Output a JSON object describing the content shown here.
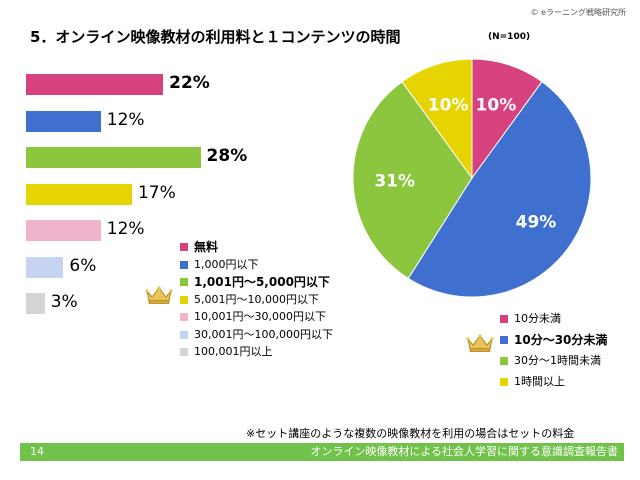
{
  "header": {
    "brand": "© eラーニング戦略研究所",
    "title": "5．オンライン映像教材の利用料と１コンテンツの時間",
    "n_label": "(N=100)"
  },
  "chart_data": [
    {
      "type": "bar",
      "orientation": "horizontal",
      "categories": [
        "無料",
        "1,000円以下",
        "1,001円～5,000円以下",
        "5,001円～10,000円以下",
        "10,001円～30,000円以下",
        "30,001円～100,000円以下",
        "100,001円以上"
      ],
      "values": [
        22,
        12,
        28,
        17,
        12,
        6,
        3
      ],
      "value_labels": [
        "22%",
        "12%",
        "28%",
        "17%",
        "12%",
        "6%",
        "3%"
      ],
      "colors": [
        "#d6427d",
        "#3f70cf",
        "#8cc63f",
        "#e6d400",
        "#f0b3cc",
        "#c6d4f2",
        "#d4d4d4"
      ],
      "highlight_index": 2,
      "bold_labels": [
        0,
        2
      ],
      "max": 30,
      "legend_placement": "bottom-center"
    },
    {
      "type": "pie",
      "categories": [
        "10分未満",
        "10分～30分未満",
        "30分～1時間未満",
        "1時間以上"
      ],
      "values": [
        10,
        49,
        31,
        10
      ],
      "value_labels": [
        "10%",
        "49%",
        "31%",
        "10%"
      ],
      "colors": [
        "#d6427d",
        "#3f70cf",
        "#8cc63f",
        "#e6d400"
      ],
      "highlight_index": 1,
      "start": "12 o'clock, clockwise",
      "legend_placement": "bottom-right"
    }
  ],
  "footnote": "※セット講座のような複数の映像教材を利用の場合はセットの料金",
  "footer": {
    "page_number": "14",
    "report_title": "オンライン映像教材による社会人学習に関する意識調査報告書",
    "color": "#70c24a"
  }
}
